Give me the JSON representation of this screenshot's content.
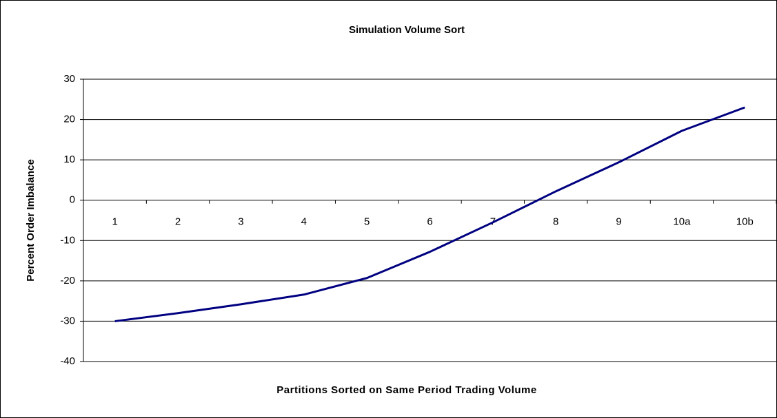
{
  "chart_data": {
    "type": "line",
    "title": "Simulation Volume Sort",
    "x_label": "Partitions Sorted on Same Period Trading Volume",
    "y_label": "Percent Order Imbalance",
    "categories": [
      "1",
      "2",
      "3",
      "4",
      "5",
      "6",
      "7",
      "8",
      "9",
      "10a",
      "10b"
    ],
    "series": [
      {
        "name": "Percent Order Imbalance",
        "color": "#000080",
        "values": [
          -30,
          -28,
          -25.8,
          -23.4,
          -19.3,
          -12.8,
          -5.5,
          2.2,
          9.4,
          17.2,
          23
        ]
      }
    ],
    "ylim": [
      -40,
      30
    ],
    "yticks": [
      -40,
      -30,
      -20,
      -10,
      0,
      10,
      20,
      30
    ],
    "grid": true
  }
}
